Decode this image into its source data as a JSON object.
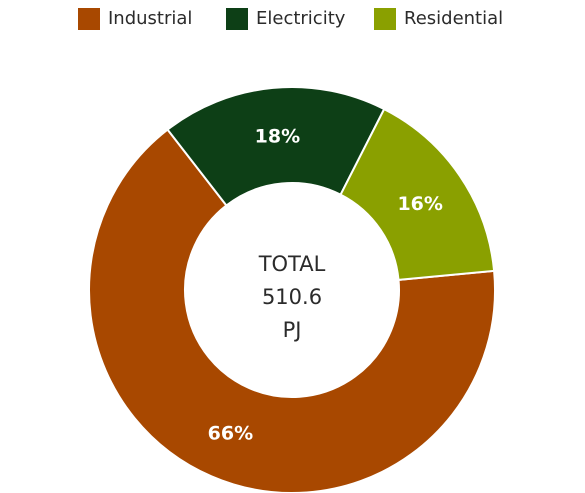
{
  "chart_data": {
    "type": "pie",
    "donut": true,
    "categories": [
      "Industrial",
      "Electricity",
      "Residential"
    ],
    "values": [
      66,
      18,
      16
    ],
    "value_labels": [
      "66%",
      "18%",
      "16%"
    ],
    "colors": [
      "#a84800",
      "#0d3f16",
      "#8aa000"
    ],
    "center_text": [
      "TOTAL",
      "510.6",
      "PJ"
    ],
    "legend_position": "top"
  }
}
